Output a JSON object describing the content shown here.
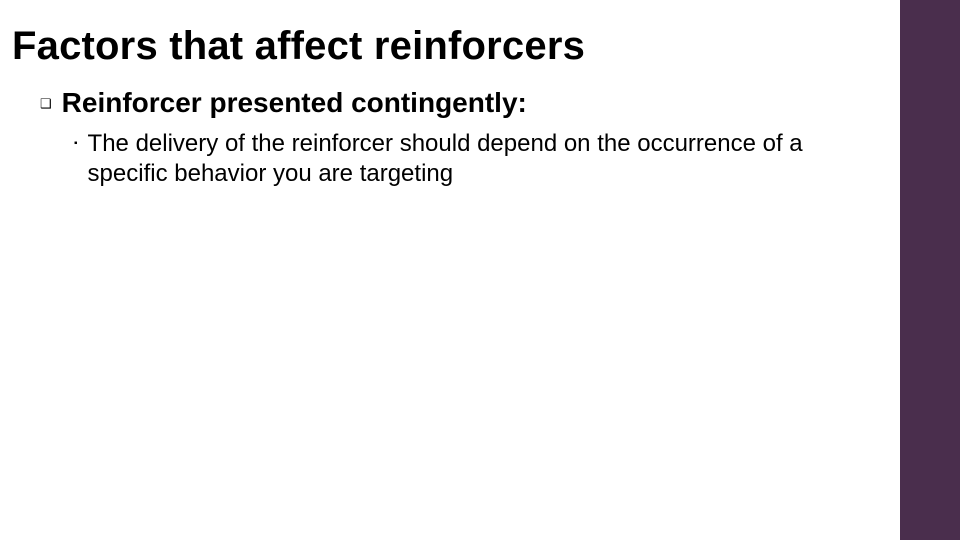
{
  "title": "Factors that affect reinforcers",
  "sidebar_color": "#4a2e4d",
  "background_color": "#ffffff",
  "text_color": "#000000",
  "title_fontsize": 40,
  "level1_fontsize": 28,
  "level2_fontsize": 24,
  "bullets": {
    "level1": [
      {
        "marker": "❑",
        "text": "Reinforcer presented contingently:",
        "children": [
          {
            "marker": "▪",
            "text": "The delivery of the reinforcer should depend on the occurrence of a specific behavior you are targeting"
          }
        ]
      }
    ]
  }
}
